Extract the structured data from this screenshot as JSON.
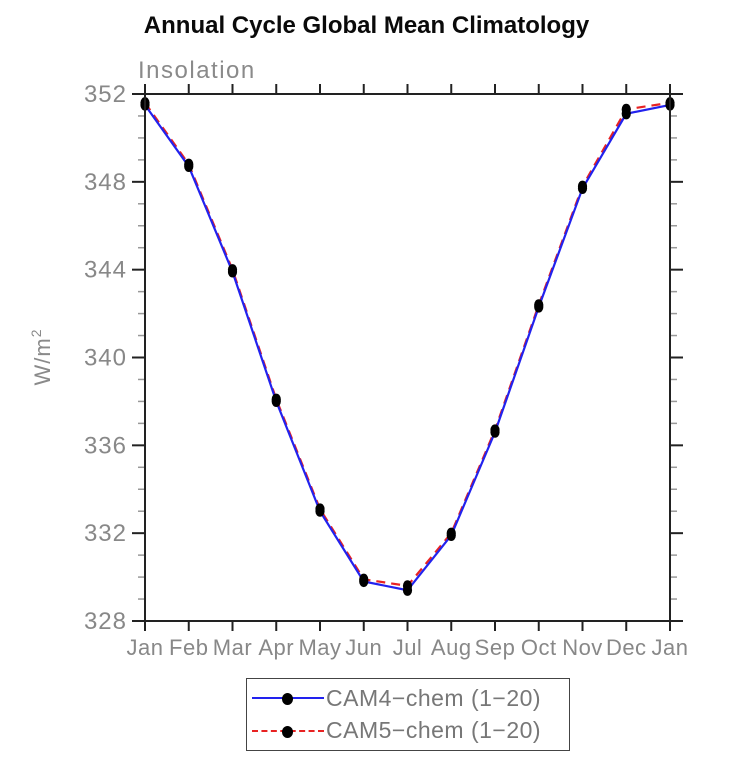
{
  "header": {
    "title": "Annual Cycle Global Mean Climatology",
    "subtitle": "Insolation"
  },
  "axes": {
    "y_label_base": "W/m",
    "y_label_exponent": "2"
  },
  "chart_data": {
    "type": "line",
    "title": "Annual Cycle Global Mean Climatology",
    "subtitle": "Insolation",
    "ylabel": "W/m²",
    "xlabel": "",
    "categories": [
      "Jan",
      "Feb",
      "Mar",
      "Apr",
      "May",
      "Jun",
      "Jul",
      "Aug",
      "Sep",
      "Oct",
      "Nov",
      "Dec",
      "Jan"
    ],
    "ylim": [
      328,
      352
    ],
    "yticks_major": [
      328,
      332,
      336,
      340,
      344,
      348,
      352
    ],
    "ytick_minor_step": 1,
    "grid": false,
    "legend_position": "bottom-center",
    "series": [
      {
        "name": "CAM4−chem (1−20)",
        "color": "#2222ee",
        "style": "solid",
        "marker": "filled-circle",
        "marker_color": "#000000",
        "values": [
          351.5,
          348.7,
          343.9,
          338.0,
          333.0,
          329.8,
          329.4,
          331.9,
          336.6,
          342.3,
          347.7,
          351.1,
          351.5
        ]
      },
      {
        "name": "CAM5−chem (1−20)",
        "color": "#e82222",
        "style": "dashed",
        "marker": "filled-circle",
        "marker_color": "#000000",
        "values": [
          351.6,
          348.8,
          344.0,
          338.1,
          333.1,
          329.9,
          329.6,
          332.0,
          336.7,
          342.4,
          347.8,
          351.3,
          351.6
        ]
      }
    ]
  },
  "style": {
    "axis_color": "#222222",
    "minor_tick_color": "#999999",
    "tick_label_color": "#888888",
    "subtitle_color": "#8a8a8a",
    "title_color": "#0a0a0a",
    "legend_text_color": "#777777",
    "background": "#ffffff"
  }
}
